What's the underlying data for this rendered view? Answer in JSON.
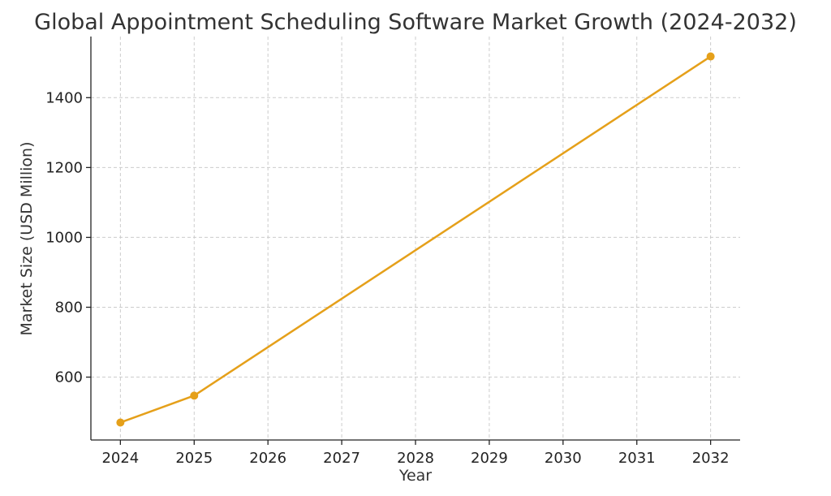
{
  "chart_data": {
    "type": "line",
    "title": "Global Appointment Scheduling Software Market Growth (2024-2032)",
    "xlabel": "Year",
    "ylabel": "Market Size (USD Million)",
    "x": [
      2024,
      2025,
      2032
    ],
    "xticks": [
      "2024",
      "2025",
      "2026",
      "2027",
      "2028",
      "2029",
      "2030",
      "2031",
      "2032"
    ],
    "xlim": [
      2023.6,
      2032.4
    ],
    "yticks": [
      600,
      800,
      1000,
      1200,
      1400
    ],
    "ylim": [
      420,
      1575
    ],
    "grid": true,
    "series": [
      {
        "values": [
          470,
          547,
          1518
        ],
        "color": "#e5a01a"
      }
    ]
  }
}
